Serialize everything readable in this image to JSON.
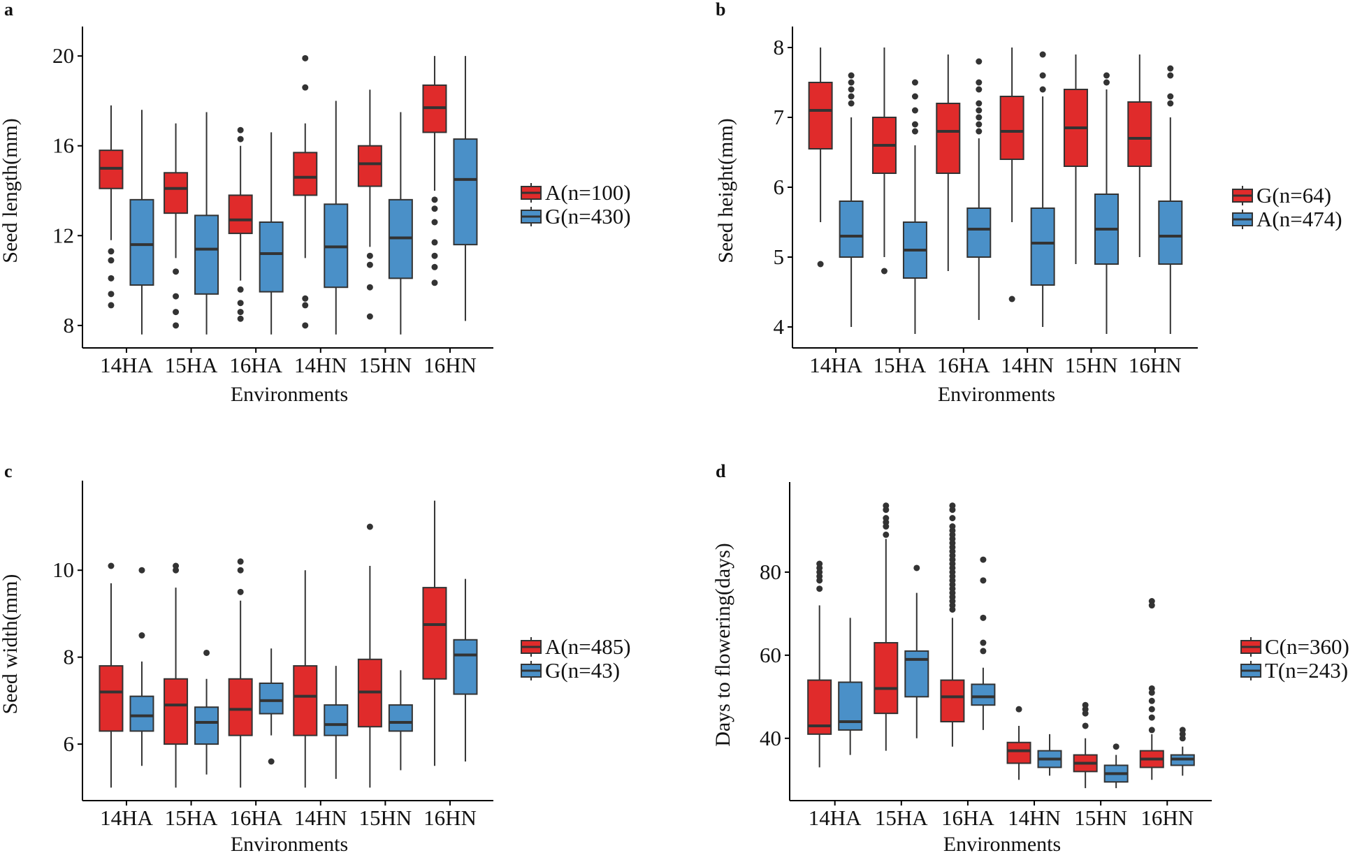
{
  "chart_data": [
    {
      "type": "boxplot",
      "panel": "a",
      "title": "",
      "xlabel": "Environments",
      "ylabel": "Seed length(mm)",
      "ylim": [
        7.0,
        21.0
      ],
      "yticks": [
        8,
        12,
        16,
        20
      ],
      "categories": [
        "14HA",
        "15HA",
        "16HA",
        "14HN",
        "15HN",
        "16HN"
      ],
      "legend_position": "right",
      "series": [
        {
          "name": "A(n=100)",
          "color": "#e02b2b",
          "boxes": [
            {
              "low": 11.8,
              "q1": 14.1,
              "median": 15.0,
              "q3": 15.8,
              "high": 17.8,
              "outliers": [
                11.3,
                10.9,
                10.1,
                9.4,
                8.9
              ]
            },
            {
              "low": 11.0,
              "q1": 13.0,
              "median": 14.1,
              "q3": 14.8,
              "high": 17.0,
              "outliers": [
                10.4,
                9.3,
                8.6,
                8.0
              ]
            },
            {
              "low": 10.0,
              "q1": 12.1,
              "median": 12.7,
              "q3": 13.8,
              "high": 16.0,
              "outliers": [
                16.7,
                16.3,
                9.6,
                9.0,
                8.6,
                8.3
              ]
            },
            {
              "low": 11.0,
              "q1": 13.8,
              "median": 14.6,
              "q3": 15.7,
              "high": 17.0,
              "outliers": [
                19.9,
                18.6,
                9.2,
                8.9,
                8.0
              ]
            },
            {
              "low": 11.5,
              "q1": 14.2,
              "median": 15.2,
              "q3": 16.0,
              "high": 18.5,
              "outliers": [
                11.1,
                10.7,
                9.7,
                8.4
              ]
            },
            {
              "low": 14.0,
              "q1": 16.6,
              "median": 17.7,
              "q3": 18.7,
              "high": 20.0,
              "outliers": [
                13.6,
                13.2,
                12.6,
                11.7,
                11.1,
                10.6,
                9.9
              ]
            }
          ]
        },
        {
          "name": "G(n=430)",
          "color": "#4a90c8",
          "boxes": [
            {
              "low": 7.6,
              "q1": 9.8,
              "median": 11.6,
              "q3": 13.6,
              "high": 17.6,
              "outliers": []
            },
            {
              "low": 7.6,
              "q1": 9.4,
              "median": 11.4,
              "q3": 12.9,
              "high": 17.5,
              "outliers": []
            },
            {
              "low": 7.6,
              "q1": 9.5,
              "median": 11.2,
              "q3": 12.6,
              "high": 16.6,
              "outliers": []
            },
            {
              "low": 7.6,
              "q1": 9.7,
              "median": 11.5,
              "q3": 13.4,
              "high": 18.0,
              "outliers": []
            },
            {
              "low": 7.6,
              "q1": 10.1,
              "median": 11.9,
              "q3": 13.6,
              "high": 17.5,
              "outliers": []
            },
            {
              "low": 8.2,
              "q1": 11.6,
              "median": 14.5,
              "q3": 16.3,
              "high": 20.0,
              "outliers": []
            }
          ]
        }
      ]
    },
    {
      "type": "boxplot",
      "panel": "b",
      "title": "",
      "xlabel": "Environments",
      "ylabel": "Seed height(mm)",
      "ylim": [
        3.7,
        8.2
      ],
      "yticks": [
        4,
        5,
        6,
        7,
        8
      ],
      "categories": [
        "14HA",
        "15HA",
        "16HA",
        "14HN",
        "15HN",
        "16HN"
      ],
      "legend_position": "right",
      "series": [
        {
          "name": "G(n=64)",
          "color": "#e02b2b",
          "boxes": [
            {
              "low": 5.5,
              "q1": 6.55,
              "median": 7.1,
              "q3": 7.5,
              "high": 8.0,
              "outliers": [
                4.9
              ]
            },
            {
              "low": 5.0,
              "q1": 6.2,
              "median": 6.6,
              "q3": 7.0,
              "high": 8.0,
              "outliers": [
                4.8
              ]
            },
            {
              "low": 4.8,
              "q1": 6.2,
              "median": 6.8,
              "q3": 7.2,
              "high": 7.9,
              "outliers": []
            },
            {
              "low": 5.5,
              "q1": 6.4,
              "median": 6.8,
              "q3": 7.3,
              "high": 8.0,
              "outliers": [
                4.4
              ]
            },
            {
              "low": 4.9,
              "q1": 6.3,
              "median": 6.85,
              "q3": 7.4,
              "high": 7.9,
              "outliers": []
            },
            {
              "low": 5.0,
              "q1": 6.3,
              "median": 6.7,
              "q3": 7.22,
              "high": 7.9,
              "outliers": []
            }
          ]
        },
        {
          "name": "A(n=474)",
          "color": "#4a90c8",
          "boxes": [
            {
              "low": 4.0,
              "q1": 5.0,
              "median": 5.3,
              "q3": 5.8,
              "high": 7.0,
              "outliers": [
                7.6,
                7.5,
                7.4,
                7.3,
                7.2
              ]
            },
            {
              "low": 3.9,
              "q1": 4.7,
              "median": 5.1,
              "q3": 5.5,
              "high": 6.6,
              "outliers": [
                7.5,
                7.3,
                7.1,
                6.9,
                6.8
              ]
            },
            {
              "low": 4.1,
              "q1": 5.0,
              "median": 5.4,
              "q3": 5.7,
              "high": 6.7,
              "outliers": [
                7.8,
                7.5,
                7.4,
                7.2,
                7.1,
                7.0,
                6.9,
                6.8
              ]
            },
            {
              "low": 4.0,
              "q1": 4.6,
              "median": 5.2,
              "q3": 5.7,
              "high": 7.3,
              "outliers": [
                7.9,
                7.6,
                7.4
              ]
            },
            {
              "low": 3.9,
              "q1": 4.9,
              "median": 5.4,
              "q3": 5.9,
              "high": 7.4,
              "outliers": [
                7.6,
                7.5
              ]
            },
            {
              "low": 3.9,
              "q1": 4.9,
              "median": 5.3,
              "q3": 5.8,
              "high": 7.0,
              "outliers": [
                7.7,
                7.6,
                7.3,
                7.2
              ]
            }
          ]
        }
      ]
    },
    {
      "type": "boxplot",
      "panel": "c",
      "title": "",
      "xlabel": "Environments",
      "ylabel": "Seed width(mm)",
      "ylim": [
        4.7,
        11.9
      ],
      "yticks": [
        6,
        8,
        10
      ],
      "categories": [
        "14HA",
        "15HA",
        "16HA",
        "14HN",
        "15HN",
        "16HN"
      ],
      "legend_position": "right",
      "series": [
        {
          "name": "A(n=485)",
          "color": "#e02b2b",
          "boxes": [
            {
              "low": 5.0,
              "q1": 6.3,
              "median": 7.2,
              "q3": 7.8,
              "high": 9.7,
              "outliers": [
                10.1
              ]
            },
            {
              "low": 5.0,
              "q1": 6.0,
              "median": 6.9,
              "q3": 7.5,
              "high": 9.6,
              "outliers": [
                10.1,
                10.0
              ]
            },
            {
              "low": 5.0,
              "q1": 6.2,
              "median": 6.8,
              "q3": 7.5,
              "high": 9.3,
              "outliers": [
                10.2,
                10.0,
                9.5
              ]
            },
            {
              "low": 5.0,
              "q1": 6.2,
              "median": 7.1,
              "q3": 7.8,
              "high": 10.0,
              "outliers": []
            },
            {
              "low": 5.0,
              "q1": 6.4,
              "median": 7.2,
              "q3": 7.95,
              "high": 10.1,
              "outliers": [
                11.0
              ]
            },
            {
              "low": 5.5,
              "q1": 7.5,
              "median": 8.75,
              "q3": 9.6,
              "high": 11.6,
              "outliers": []
            }
          ]
        },
        {
          "name": "G(n=43)",
          "color": "#4a90c8",
          "boxes": [
            {
              "low": 5.5,
              "q1": 6.3,
              "median": 6.65,
              "q3": 7.1,
              "high": 7.9,
              "outliers": [
                10.0,
                8.5
              ]
            },
            {
              "low": 5.3,
              "q1": 6.0,
              "median": 6.5,
              "q3": 6.85,
              "high": 7.5,
              "outliers": [
                8.1
              ]
            },
            {
              "low": 6.2,
              "q1": 6.7,
              "median": 7.0,
              "q3": 7.4,
              "high": 8.2,
              "outliers": [
                5.6
              ]
            },
            {
              "low": 5.2,
              "q1": 6.2,
              "median": 6.45,
              "q3": 6.9,
              "high": 7.8,
              "outliers": []
            },
            {
              "low": 5.4,
              "q1": 6.3,
              "median": 6.5,
              "q3": 6.9,
              "high": 7.7,
              "outliers": []
            },
            {
              "low": 5.6,
              "q1": 7.15,
              "median": 8.05,
              "q3": 8.4,
              "high": 9.8,
              "outliers": []
            }
          ]
        }
      ]
    },
    {
      "type": "boxplot",
      "panel": "d",
      "title": "",
      "xlabel": "Environments",
      "ylabel": "Days to flowering(days)",
      "ylim": [
        25,
        100
      ],
      "yticks": [
        40,
        60,
        80
      ],
      "categories": [
        "14HA",
        "15HA",
        "16HA",
        "14HN",
        "15HN",
        "16HN"
      ],
      "legend_position": "right",
      "series": [
        {
          "name": "C(n=360)",
          "color": "#e02b2b",
          "boxes": [
            {
              "low": 33,
              "q1": 41,
              "median": 43,
              "q3": 54,
              "high": 72,
              "outliers": [
                82,
                81,
                80,
                79,
                78,
                76
              ]
            },
            {
              "low": 37,
              "q1": 46,
              "median": 52,
              "q3": 63,
              "high": 88,
              "outliers": [
                96,
                95,
                93,
                92,
                91,
                89
              ]
            },
            {
              "low": 38,
              "q1": 44,
              "median": 50,
              "q3": 54,
              "high": 69,
              "outliers": [
                96,
                95,
                93,
                91,
                90,
                89,
                88,
                87,
                86,
                85,
                84,
                83,
                82,
                81,
                80,
                79,
                78,
                77,
                76,
                75,
                74,
                73,
                72,
                71
              ]
            },
            {
              "low": 30,
              "q1": 34,
              "median": 37,
              "q3": 39,
              "high": 43,
              "outliers": [
                47
              ]
            },
            {
              "low": 28,
              "q1": 32,
              "median": 34,
              "q3": 36,
              "high": 40,
              "outliers": [
                48,
                47,
                46,
                43
              ]
            },
            {
              "low": 30,
              "q1": 33,
              "median": 35,
              "q3": 37,
              "high": 41,
              "outliers": [
                73,
                72,
                52,
                51,
                49,
                47,
                45,
                42
              ]
            }
          ]
        },
        {
          "name": "T(n=243)",
          "color": "#4a90c8",
          "boxes": [
            {
              "low": 36,
              "q1": 42,
              "median": 44,
              "q3": 53.5,
              "high": 69,
              "outliers": []
            },
            {
              "low": 40,
              "q1": 50,
              "median": 59,
              "q3": 61,
              "high": 75,
              "outliers": [
                81
              ]
            },
            {
              "low": 42,
              "q1": 48,
              "median": 50,
              "q3": 53,
              "high": 57,
              "outliers": [
                83,
                78,
                69,
                63,
                61
              ]
            },
            {
              "low": 31,
              "q1": 33,
              "median": 35,
              "q3": 37,
              "high": 41,
              "outliers": []
            },
            {
              "low": 28,
              "q1": 29.5,
              "median": 31.5,
              "q3": 33.5,
              "high": 36,
              "outliers": [
                38
              ]
            },
            {
              "low": 31,
              "q1": 33.5,
              "median": 35,
              "q3": 36,
              "high": 38,
              "outliers": [
                42,
                41,
                40
              ]
            }
          ]
        }
      ]
    }
  ]
}
